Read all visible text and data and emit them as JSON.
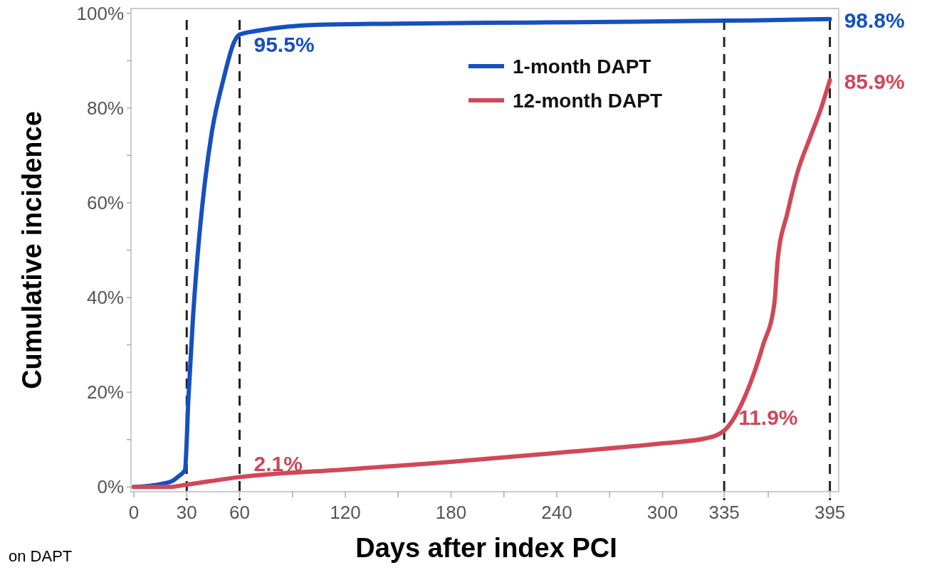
{
  "chart_data": {
    "type": "line",
    "xlabel": "Days after index PCI",
    "ylabel": "Cumulative incidence",
    "xlim": [
      0,
      400
    ],
    "ylim": [
      -1,
      101
    ],
    "xticks": [
      0,
      30,
      60,
      {
        "value": 90,
        "label": null
      },
      120,
      {
        "value": 150,
        "label": null
      },
      180,
      {
        "value": 210,
        "label": null
      },
      240,
      {
        "value": 270,
        "label": null
      },
      300,
      335,
      {
        "value": 360,
        "label": null
      },
      395
    ],
    "yticks": [
      {
        "value": 0,
        "label": "0%"
      },
      {
        "value": 10,
        "label": null
      },
      {
        "value": 20,
        "label": "20%"
      },
      {
        "value": 30,
        "label": null
      },
      {
        "value": 40,
        "label": "40%"
      },
      {
        "value": 50,
        "label": null
      },
      {
        "value": 60,
        "label": "60%"
      },
      {
        "value": 70,
        "label": null
      },
      {
        "value": 80,
        "label": "80%"
      },
      {
        "value": 90,
        "label": null
      },
      {
        "value": 100,
        "label": "100%"
      }
    ],
    "grid": false,
    "legend": "top right",
    "marker": "none",
    "line_style": "solid",
    "series": [
      {
        "name": "1-month DAPT",
        "color": "#1550c0",
        "x": [
          0,
          15,
          22,
          25.5,
          29,
          31,
          33.6,
          36.2,
          39.9,
          44.3,
          50.8,
          57,
          60,
          70,
          105,
          150,
          200,
          250,
          300,
          350,
          395
        ],
        "values": [
          0,
          0.6,
          1.3,
          2.3,
          3.6,
          19,
          36,
          49,
          63,
          75,
          86,
          94,
          95.5,
          96.3,
          97.6,
          97.8,
          98,
          98.1,
          98.3,
          98.5,
          98.8
        ],
        "value_labels": [
          null,
          null,
          null,
          null,
          null,
          null,
          null,
          null,
          null,
          null,
          null,
          null,
          "95.5%",
          null,
          null,
          null,
          null,
          null,
          null,
          null,
          "98.8%"
        ]
      },
      {
        "name": "12-month DAPT",
        "color": "#d04858",
        "x": [
          0,
          20,
          30,
          60,
          120,
          150,
          180,
          240,
          300,
          325,
          335,
          348.8,
          357,
          363.5,
          365.3,
          371,
          376.5,
          383.9,
          389.5,
          395
        ],
        "values": [
          0,
          0,
          0.5,
          2.1,
          3.7,
          4.5,
          5.3,
          7.2,
          9.2,
          10.3,
          11.9,
          20.9,
          29.9,
          38.8,
          47.7,
          58,
          66.3,
          73.9,
          79.4,
          85.9
        ],
        "value_labels": [
          null,
          null,
          null,
          "2.1%",
          null,
          null,
          null,
          null,
          null,
          null,
          "11.9%",
          null,
          null,
          null,
          null,
          null,
          null,
          null,
          null,
          "85.9%"
        ]
      }
    ],
    "ref_lines": [
      {
        "axis": "x",
        "value": 30,
        "color": "#222222",
        "line_style": "dashed"
      },
      {
        "axis": "x",
        "value": 60,
        "color": "#222222",
        "line_style": "dashed"
      },
      {
        "axis": "x",
        "value": 335,
        "color": "#222222",
        "line_style": "dashed"
      },
      {
        "axis": "x",
        "value": 395,
        "color": "#222222",
        "line_style": "dashed"
      }
    ],
    "annotations": [
      "on DAPT"
    ]
  }
}
